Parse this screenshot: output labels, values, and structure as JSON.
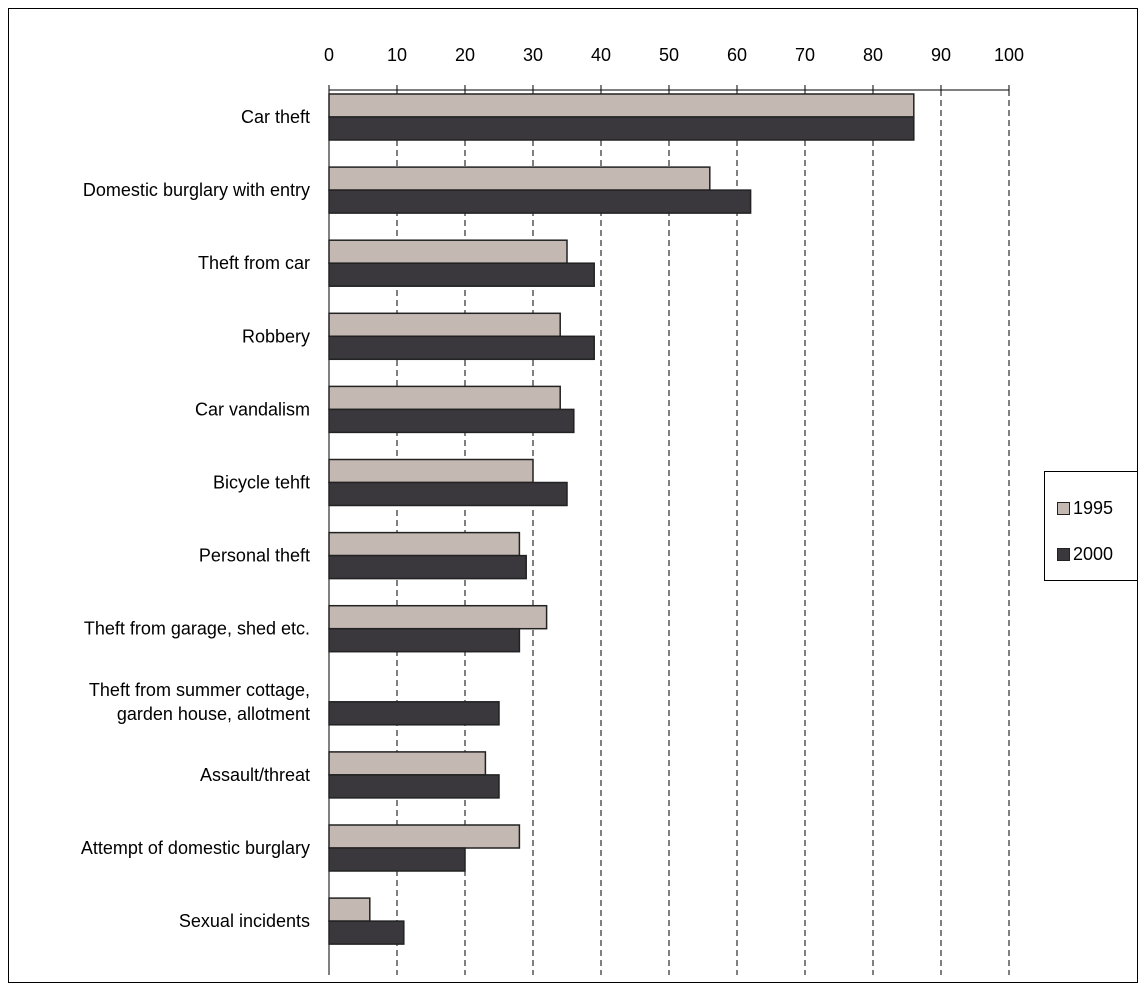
{
  "chart_data": {
    "type": "bar",
    "orientation": "horizontal",
    "categories": [
      "Car theft",
      "Domestic burglary with entry",
      "Theft from car",
      "Robbery",
      "Car vandalism",
      "Bicycle tehft",
      "Personal theft",
      "Theft from garage, shed etc.",
      "Theft from summer cottage, garden house, allotment",
      "Assault/threat",
      "Attempt of domestic burglary",
      "Sexual incidents"
    ],
    "category_lines": [
      [
        "Car theft"
      ],
      [
        "Domestic burglary with entry"
      ],
      [
        "Theft from car"
      ],
      [
        "Robbery"
      ],
      [
        "Car vandalism"
      ],
      [
        "Bicycle tehft"
      ],
      [
        "Personal theft"
      ],
      [
        "Theft from garage, shed etc."
      ],
      [
        "Theft from summer cottage,",
        "garden house, allotment"
      ],
      [
        "Assault/threat"
      ],
      [
        "Attempt of domestic burglary"
      ],
      [
        "Sexual incidents"
      ]
    ],
    "series": [
      {
        "name": "1995",
        "color": "#c4b8b3",
        "values": [
          86,
          56,
          35,
          34,
          34,
          30,
          28,
          32,
          null,
          23,
          28,
          6
        ]
      },
      {
        "name": "2000",
        "color": "#3a383c",
        "values": [
          86,
          62,
          39,
          39,
          36,
          35,
          29,
          28,
          25,
          25,
          20,
          11
        ]
      }
    ],
    "x_ticks": [
      "0",
      "10",
      "20",
      "30",
      "40",
      "50",
      "60",
      "70",
      "80",
      "90",
      "100"
    ],
    "xlim": [
      0,
      100
    ],
    "x_axis_position": "top",
    "grid": "vertical dashed",
    "legend_position": "right",
    "title": "",
    "xlabel": "",
    "ylabel": ""
  }
}
